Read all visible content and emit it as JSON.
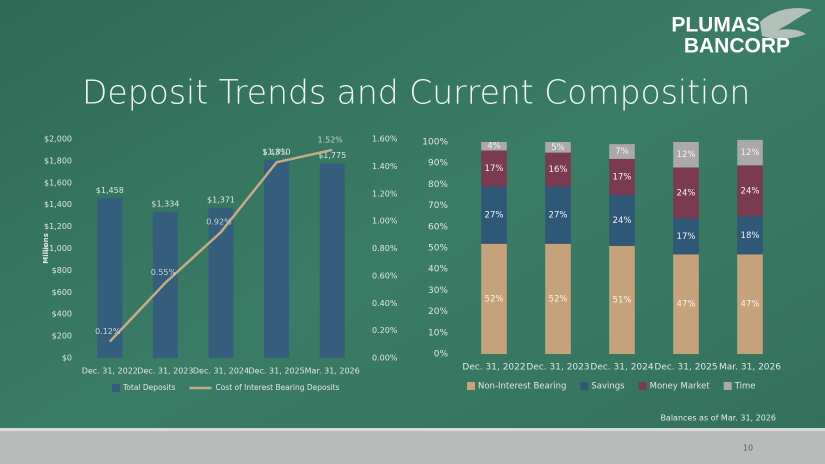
{
  "slide": {
    "title": "Deposit Trends and Current Composition",
    "logo": [
      "PLUMAS",
      "BANCORP"
    ],
    "footnote": "Balances as of Mar. 31, 2026",
    "page_number": "10"
  },
  "chart_data": [
    {
      "type": "combo",
      "ylabel": "Millions",
      "categories": [
        "Dec. 31, 2022",
        "Dec. 31, 2023",
        "Dec. 31, 2024",
        "Dec. 31, 2025",
        "Mar. 31, 2026"
      ],
      "series": [
        {
          "name": "Total Deposits",
          "type": "bar",
          "color": "#355d7c",
          "values": [
            1458,
            1334,
            1371,
            1810,
            1775
          ],
          "value_labels": [
            "$1,458",
            "$1,334",
            "$1,371",
            "$1,810",
            "$1,775"
          ]
        },
        {
          "name": "Cost of Interest Bearing Deposits",
          "type": "line",
          "axis": "y2",
          "color": "#c4ab86",
          "values": [
            0.12,
            0.55,
            0.92,
            1.43,
            1.52
          ],
          "value_labels": [
            "0.12%",
            "0.55%",
            "0.92%",
            "1.43%",
            "1.52%"
          ]
        }
      ],
      "ylim": [
        0,
        2000
      ],
      "yticks": [
        {
          "value": 0,
          "label": "$0"
        },
        {
          "value": 200,
          "label": "$200"
        },
        {
          "value": 400,
          "label": "$400"
        },
        {
          "value": 600,
          "label": "$600"
        },
        {
          "value": 800,
          "label": "$800"
        },
        {
          "value": 1000,
          "label": "$1,000"
        },
        {
          "value": 1200,
          "label": "$1,200"
        },
        {
          "value": 1400,
          "label": "$1,400"
        },
        {
          "value": 1600,
          "label": "$1,600"
        },
        {
          "value": 1800,
          "label": "$1,800"
        },
        {
          "value": 2000,
          "label": "$2,000"
        }
      ],
      "y2lim": [
        0,
        1.6
      ],
      "y2ticks": [
        {
          "value": 0,
          "label": "0.00%"
        },
        {
          "value": 0.2,
          "label": "0.20%"
        },
        {
          "value": 0.4,
          "label": "0.40%"
        },
        {
          "value": 0.6,
          "label": "0.60%"
        },
        {
          "value": 0.8,
          "label": "0.80%"
        },
        {
          "value": 1.0,
          "label": "1.00%"
        },
        {
          "value": 1.2,
          "label": "1.20%"
        },
        {
          "value": 1.4,
          "label": "1.40%"
        },
        {
          "value": 1.6,
          "label": "1.60%"
        }
      ],
      "grid": false,
      "legend": "bottom"
    },
    {
      "type": "stacked_bar",
      "categories": [
        "Dec. 31, 2022",
        "Dec. 31, 2023",
        "Dec. 31, 2024",
        "Dec. 31, 2025",
        "Mar. 31, 2026"
      ],
      "series": [
        {
          "name": "Non-Interest Bearing",
          "color": "#c6a27a",
          "values": [
            52,
            52,
            51,
            47,
            47
          ],
          "value_labels": [
            "52%",
            "52%",
            "51%",
            "47%",
            "47%"
          ]
        },
        {
          "name": "Savings",
          "color": "#2f5776",
          "values": [
            27,
            27,
            24,
            17,
            18
          ],
          "value_labels": [
            "27%",
            "27%",
            "24%",
            "17%",
            "18%"
          ]
        },
        {
          "name": "Money Market",
          "color": "#7a3a52",
          "values": [
            17,
            16,
            17,
            24,
            24
          ],
          "value_labels": [
            "17%",
            "16%",
            "17%",
            "24%",
            "24%"
          ]
        },
        {
          "name": "Time",
          "color": "#a9a9a9",
          "values": [
            4,
            5,
            7,
            12,
            12
          ],
          "value_labels": [
            "4%",
            "5%",
            "7%",
            "12%",
            "12%"
          ]
        }
      ],
      "ylim": [
        0,
        100
      ],
      "yticks": [
        {
          "value": 0,
          "label": "0%"
        },
        {
          "value": 10,
          "label": "10%"
        },
        {
          "value": 20,
          "label": "20%"
        },
        {
          "value": 30,
          "label": "30%"
        },
        {
          "value": 40,
          "label": "40%"
        },
        {
          "value": 50,
          "label": "50%"
        },
        {
          "value": 60,
          "label": "60%"
        },
        {
          "value": 70,
          "label": "70%"
        },
        {
          "value": 80,
          "label": "80%"
        },
        {
          "value": 90,
          "label": "90%"
        },
        {
          "value": 100,
          "label": "100%"
        }
      ],
      "grid": false,
      "legend": "bottom"
    }
  ]
}
